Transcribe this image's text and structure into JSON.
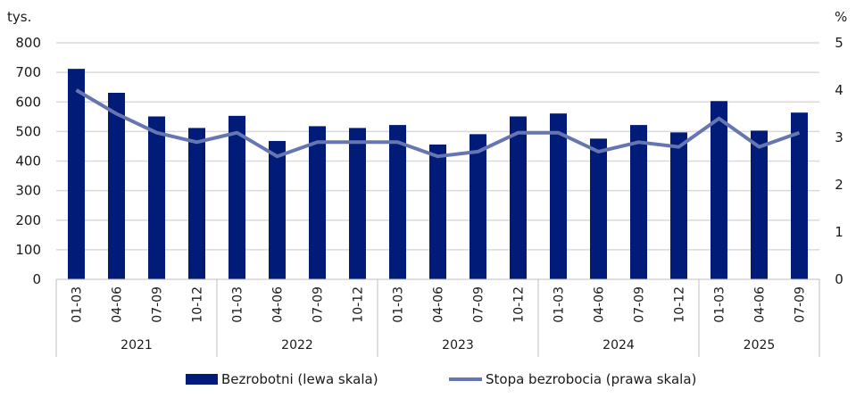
{
  "chart_data": {
    "type": "bar+line",
    "left_unit": "tys.",
    "right_unit": "%",
    "left_ylim": [
      0,
      800
    ],
    "left_ticks": [
      0,
      100,
      200,
      300,
      400,
      500,
      600,
      700,
      800
    ],
    "right_ylim": [
      0,
      5
    ],
    "right_ticks": [
      0,
      1,
      2,
      3,
      4,
      5
    ],
    "grid": true,
    "legend_placement": "bottom",
    "categories": [
      "01-03",
      "04-06",
      "07-09",
      "10-12",
      "01-03",
      "04-06",
      "07-09",
      "10-12",
      "01-03",
      "04-06",
      "07-09",
      "10-12",
      "01-03",
      "04-06",
      "07-09",
      "10-12",
      "01-03",
      "04-06",
      "07-09"
    ],
    "groups": [
      {
        "label": "2021",
        "count": 4
      },
      {
        "label": "2022",
        "count": 4
      },
      {
        "label": "2023",
        "count": 4
      },
      {
        "label": "2024",
        "count": 4
      },
      {
        "label": "2025",
        "count": 3
      }
    ],
    "series": [
      {
        "name": "Bezrobotni (lewa skala)",
        "type": "bar",
        "axis": "left",
        "color": "#001c78",
        "values": [
          712,
          631,
          551,
          512,
          553,
          468,
          518,
          512,
          522,
          456,
          491,
          551,
          561,
          476,
          522,
          497,
          603,
          503,
          564
        ]
      },
      {
        "name": "Stopa bezrobocia (prawa skala)",
        "type": "line",
        "axis": "right",
        "color": "#6676b0",
        "values": [
          4.0,
          3.5,
          3.1,
          2.9,
          3.1,
          2.6,
          2.9,
          2.9,
          2.9,
          2.6,
          2.7,
          3.1,
          3.1,
          2.7,
          2.9,
          2.8,
          3.4,
          2.8,
          3.1
        ]
      }
    ]
  }
}
